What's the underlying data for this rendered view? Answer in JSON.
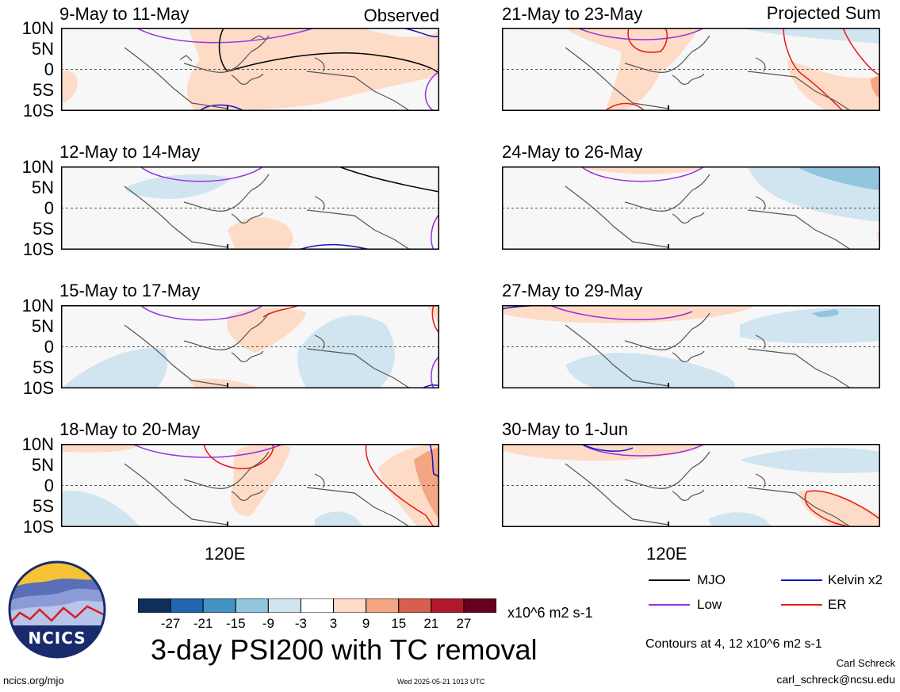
{
  "chart_data": {
    "type": "heatmap",
    "title": "3-day PSI200 with TC removal",
    "ylabels": [
      "10N",
      "5N",
      "0",
      "5S",
      "10S"
    ],
    "xlabel_tick": "120E",
    "columns": [
      {
        "corner_label": "Observed"
      },
      {
        "corner_label": "Projected Sum"
      }
    ],
    "panels": [
      {
        "period": "9-May to 11-May",
        "column": "Observed"
      },
      {
        "period": "12-May to 14-May",
        "column": "Observed"
      },
      {
        "period": "15-May to 17-May",
        "column": "Observed"
      },
      {
        "period": "18-May to 20-May",
        "column": "Observed"
      },
      {
        "period": "21-May to 23-May",
        "column": "Projected Sum"
      },
      {
        "period": "24-May to 26-May",
        "column": "Projected Sum"
      },
      {
        "period": "27-May to 29-May",
        "column": "Projected Sum"
      },
      {
        "period": "30-May to 1-Jun",
        "column": "Projected Sum"
      }
    ],
    "colorbar": {
      "ticks": [
        "-27",
        "-21",
        "-15",
        "-9",
        "-3",
        "3",
        "9",
        "15",
        "21",
        "27"
      ],
      "colors": [
        "#0d2f5a",
        "#2166ac",
        "#4393c3",
        "#92c5de",
        "#d1e5f0",
        "#ffffff",
        "#fddbc7",
        "#f4a582",
        "#d6604d",
        "#b2182b",
        "#67001f"
      ],
      "units": "x10^6 m2 s-1"
    },
    "legend": [
      {
        "label": "MJO",
        "color": "#000000"
      },
      {
        "label": "Kelvin x2",
        "color": "#1414c8"
      },
      {
        "label": "Low",
        "color": "#9a2fe0"
      },
      {
        "label": "ER",
        "color": "#e81a10"
      }
    ]
  },
  "footer": {
    "contours": "Contours at 4, 12 x10^6 m2 s-1",
    "author": "Carl Schreck",
    "email": "carl_schreck@ncsu.edu",
    "site": "ncics.org/mjo",
    "timestamp": "Wed 2025-05-21 1013 UTC",
    "logo_text": "NCICS"
  }
}
